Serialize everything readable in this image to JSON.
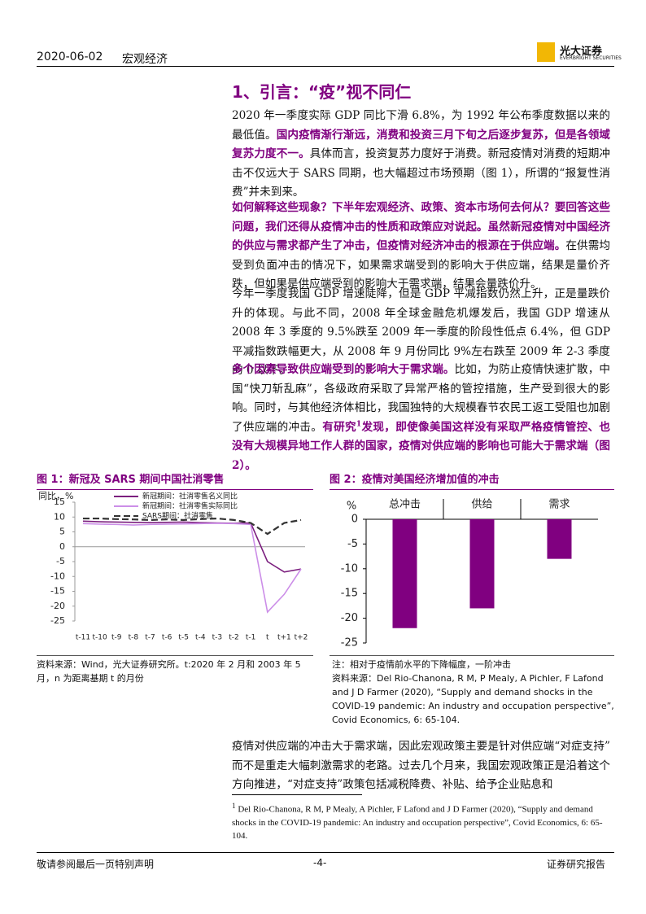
{
  "header": {
    "date": "2020-06-02",
    "section": "宏观经济",
    "logo": "光大证券",
    "logo_en": "EVERBRIGHT SECURITIES"
  },
  "heading": "1、引言：“疫”视不同仁",
  "paragraphs": [
    [
      {
        "text": "2020 年一季度实际 GDP 同比下滑 6.8%，为 1992 年公布季度数据以来的最低值。",
        "bold": false
      },
      {
        "text": "国内疫情渐行渐远，消费和投资三月下旬之后逐步复苏，但是各领域复苏力度不一。",
        "bold": true
      },
      {
        "text": "具体而言，投资复苏力度好于消费。新冠疫情对消费的短期冲击不仅远大于 SARS 同期，也大幅超过市场预期（图 1），所谓的“报复性消费”并未到来。",
        "bold": false
      }
    ],
    [
      {
        "text": "如何解释这些现象？下半年宏观经济、政策、资本市场何去何从？要回答这些问题，我们还得从疫情冲击的性质和政策应对说起。虽然新冠疫情对中国经济的供应与需求都产生了冲击，但疫情对经济冲击的根源在于供应端。",
        "bold": true
      },
      {
        "text": "在供需均受到负面冲击的情况下，如果需求端受到的影响大于供应端，结果是量价齐跌，但如果是供应端受到的影响大于需求端，结果会量跌价升。",
        "bold": false
      }
    ],
    [
      {
        "text": "今年一季度我国 GDP 增速陡降，但是 GDP 平减指数仍然上升，正是量跌价升的体现。与此不同，2008 年全球金融危机爆发后，我国 GDP 增速从 2008 年 3 季度的 9.5%跌至 2009 年一季度的阶段性低点 6.4%，但 GDP 平减指数跌幅更大，从 2008 年 9 月份同比 9%左右跌至 2009 年 2-3 季度的 0 以下。",
        "bold": false
      }
    ],
    [
      {
        "text": "多个因素导致供应端受到的影响大于需求端。",
        "bold": true
      },
      {
        "text": "比如，为防止疫情快速扩散，中国“快刀斩乱麻”，各级政府采取了异常严格的管控措施，生产受到很大的影响。同时，与其他经济体相比，我国独特的大规模春节农民工返工受阻也加剧了供应端的冲击。",
        "bold": false
      },
      {
        "text": "有研究",
        "bold": true
      },
      {
        "text": "1",
        "bold": true,
        "sup": true
      },
      {
        "text": "发现，即使像美国这样没有采取严格疫情管控、也没有大规模异地工作人群的国家，疫情对供应端的影响也可能大于需求端（图 2）。",
        "bold": true
      }
    ],
    [
      {
        "text": "疫情对供应端的冲击大于需求端，因此宏观政策主要是针对供应端“对症支持”而不是重走大幅刺激需求的老路。过去几个月来，我国宏观政策正是沿着这个方向推进，“对症支持”政策包括减税降费、补贴、给予企业贴息和",
        "bold": false
      }
    ]
  ],
  "chart_data": [
    {
      "type": "line",
      "title": "图 1：新冠及 SARS 期间中国社消零售",
      "y_label": "同比，%",
      "categories": [
        "t-11",
        "t-10",
        "t-9",
        "t-8",
        "t-7",
        "t-6",
        "t-5",
        "t-4",
        "t-3",
        "t-2",
        "t-1",
        "t",
        "t+1",
        "t+2"
      ],
      "series": [
        {
          "name": "新冠期间：社消零售名义同比",
          "color": "#7b1f7e",
          "dashed": false,
          "values": [
            8.6,
            8.4,
            8.3,
            8.2,
            8.1,
            8.2,
            8.3,
            8.1,
            8.0,
            7.9,
            8.0,
            -5,
            -8.5,
            -7.5
          ]
        },
        {
          "name": "新冠期间：社消零售实际同比",
          "color": "#cc8ee8",
          "dashed": false,
          "values": [
            7.8,
            7.6,
            7.5,
            7.3,
            7.5,
            7.6,
            7.7,
            7.8,
            7.9,
            7.8,
            7.5,
            -22,
            -16,
            -7.5
          ]
        },
        {
          "name": "SARS期间：社消零售",
          "color": "#333333",
          "dashed": true,
          "values": [
            9.5,
            9.5,
            9.3,
            9.2,
            9.0,
            9.2,
            9.0,
            9.3,
            9.5,
            9.0,
            8.0,
            4.3,
            8.0,
            9.0
          ]
        }
      ],
      "ylim": [
        -25,
        15
      ],
      "yticks": [
        15,
        10,
        5,
        0,
        -5,
        -10,
        -15,
        -20,
        -25
      ],
      "source": "资料来源：Wind，光大证券研究所。t:2020 年 2 月和 2003 年 5 月，n 为距离基期 t 的月份"
    },
    {
      "type": "bar",
      "title": "图 2：疫情对美国经济增加值的冲击",
      "y_label": "%",
      "categories": [
        "总冲击",
        "供给",
        "需求"
      ],
      "values": [
        -22,
        -18,
        -8
      ],
      "color": "#800080",
      "ylim": [
        -25,
        0
      ],
      "yticks": [
        0,
        -5,
        -10,
        -15,
        -20,
        -25
      ],
      "note": "注：相对于疫情前水平的下降幅度，一阶冲击",
      "source": "资料来源：Del Rio-Chanona, R M, P Mealy, A Pichler, F Lafond and J D Farmer (2020), “Supply and demand shocks in the COVID-19 pandemic: An industry and occupation perspective”, Covid Economics, 6: 65-104."
    }
  ],
  "footnote": {
    "mark": "1",
    "text": "Del Rio-Chanona, R M, P Mealy, A Pichler, F Lafond and J D Farmer (2020), “Supply and demand shocks in the COVID-19 pandemic: An industry and occupation perspective”, Covid Economics, 6: 65-104."
  },
  "footer": {
    "left": "敬请参阅最后一页特别声明",
    "center": "-4-",
    "right": "证券研究报告"
  }
}
